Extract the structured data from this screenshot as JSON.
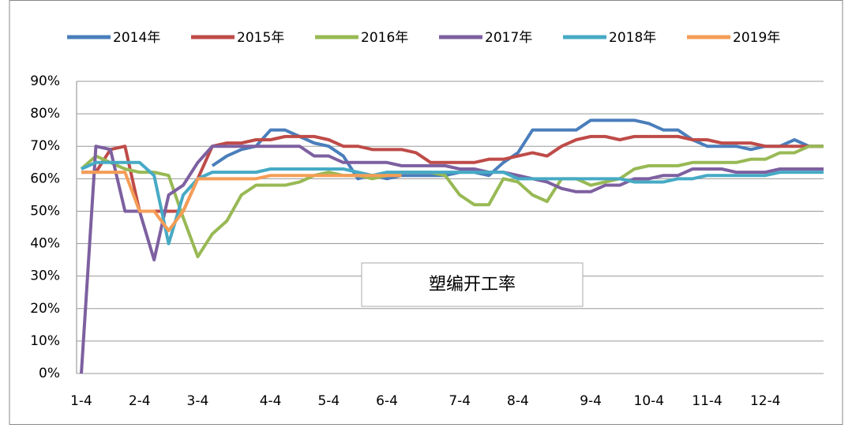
{
  "chart_data": {
    "type": "line",
    "annotation": "塑编开工率",
    "categories": [
      "1-4",
      null,
      null,
      null,
      "2-4",
      null,
      null,
      null,
      "3-4",
      null,
      null,
      null,
      null,
      "4-4",
      null,
      null,
      null,
      "5-4",
      null,
      null,
      null,
      "6-4",
      null,
      null,
      null,
      null,
      "7-4",
      null,
      null,
      null,
      "8-4",
      null,
      null,
      null,
      null,
      "9-4",
      null,
      null,
      null,
      "10-4",
      null,
      null,
      null,
      "11-4",
      null,
      null,
      null,
      "12-4",
      null,
      null,
      null,
      null
    ],
    "ylim": [
      0,
      90
    ],
    "yticks": [
      {
        "value": 0,
        "label": "0%"
      },
      {
        "value": 10,
        "label": "10%"
      },
      {
        "value": 20,
        "label": "20%"
      },
      {
        "value": 30,
        "label": "30%"
      },
      {
        "value": 40,
        "label": "40%"
      },
      {
        "value": 50,
        "label": "50%"
      },
      {
        "value": 60,
        "label": "60%"
      },
      {
        "value": 70,
        "label": "70%"
      },
      {
        "value": 80,
        "label": "80%"
      },
      {
        "value": 90,
        "label": "90%"
      }
    ],
    "grid": true,
    "legend": "top",
    "series": [
      {
        "name": "2014年",
        "color": "#4a7ebb",
        "values": [
          null,
          null,
          null,
          null,
          null,
          null,
          null,
          null,
          null,
          64,
          67,
          69,
          70,
          75,
          75,
          73,
          71,
          70,
          67,
          60,
          61,
          60,
          61,
          61,
          61,
          61,
          62,
          62,
          61,
          65,
          68,
          75,
          75,
          75,
          75,
          78,
          78,
          78,
          78,
          77,
          75,
          75,
          72,
          70,
          70,
          70,
          69,
          70,
          70,
          72,
          70,
          70
        ]
      },
      {
        "name": "2015年",
        "color": "#be4b48",
        "values": [
          62,
          62,
          69,
          70,
          50,
          50,
          50,
          50,
          60,
          70,
          71,
          71,
          72,
          72,
          73,
          73,
          73,
          72,
          70,
          70,
          69,
          69,
          69,
          68,
          65,
          65,
          65,
          65,
          66,
          66,
          67,
          68,
          67,
          70,
          72,
          73,
          73,
          72,
          73,
          73,
          73,
          73,
          72,
          72,
          71,
          71,
          71,
          70,
          70,
          70,
          70,
          70
        ]
      },
      {
        "name": "2016年",
        "color": "#98b954",
        "values": [
          63,
          67,
          65,
          63,
          62,
          62,
          61,
          48,
          36,
          43,
          47,
          55,
          58,
          58,
          58,
          59,
          61,
          62,
          61,
          61,
          60,
          61,
          62,
          62,
          62,
          61,
          55,
          52,
          52,
          60,
          59,
          55,
          53,
          60,
          60,
          58,
          59,
          60,
          63,
          64,
          64,
          64,
          65,
          65,
          65,
          65,
          66,
          66,
          68,
          68,
          70,
          70
        ]
      },
      {
        "name": "2017年",
        "color": "#7d60a0",
        "values": [
          0,
          70,
          69,
          50,
          50,
          35,
          55,
          58,
          65,
          70,
          70,
          70,
          70,
          70,
          70,
          70,
          67,
          67,
          65,
          65,
          65,
          65,
          64,
          64,
          64,
          64,
          63,
          63,
          62,
          62,
          61,
          60,
          59,
          57,
          56,
          56,
          58,
          58,
          60,
          60,
          61,
          61,
          63,
          63,
          63,
          62,
          62,
          62,
          63,
          63,
          63,
          63
        ]
      },
      {
        "name": "2018年",
        "color": "#46aac5",
        "values": [
          63,
          65,
          65,
          65,
          65,
          61,
          40,
          55,
          60,
          62,
          62,
          62,
          62,
          63,
          63,
          63,
          63,
          63,
          63,
          62,
          61,
          62,
          62,
          62,
          62,
          62,
          62,
          62,
          62,
          62,
          60,
          60,
          60,
          60,
          60,
          60,
          60,
          60,
          59,
          59,
          59,
          60,
          60,
          61,
          61,
          61,
          61,
          61,
          62,
          62,
          62,
          62
        ]
      },
      {
        "name": "2019年",
        "color": "#f59d56",
        "values": [
          62,
          62,
          62,
          62,
          50,
          50,
          44,
          50,
          60,
          60,
          60,
          60,
          60,
          61,
          61,
          61,
          61,
          61,
          61,
          61,
          61,
          61,
          61,
          null,
          null,
          null,
          null,
          null,
          null,
          null,
          null,
          null,
          null,
          null,
          null,
          null,
          null,
          null,
          null,
          null,
          null,
          null,
          null,
          null,
          null,
          null,
          null,
          null,
          null,
          null,
          null,
          null
        ]
      }
    ]
  }
}
